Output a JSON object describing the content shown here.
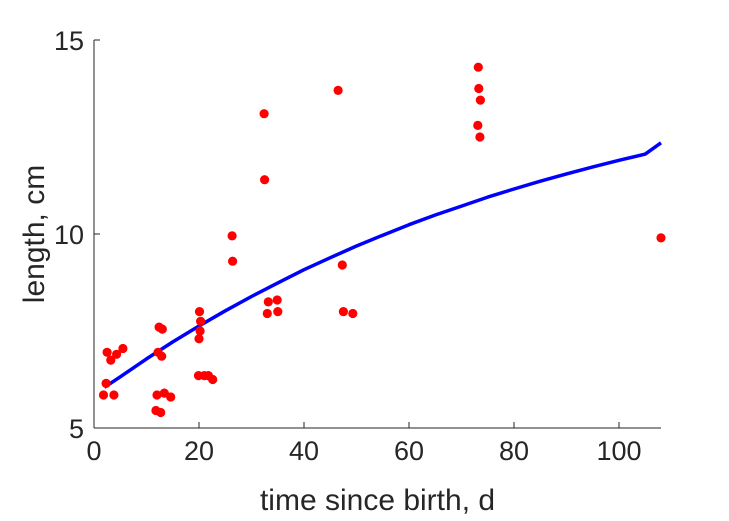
{
  "chart_data": {
    "type": "scatter",
    "title": "",
    "xlabel": "time since birth, d",
    "ylabel": "length, cm",
    "xlim": [
      0,
      108
    ],
    "ylim": [
      5,
      15
    ],
    "xticks": [
      0,
      20,
      40,
      60,
      80,
      100
    ],
    "yticks": [
      5,
      10,
      15
    ],
    "grid": false,
    "legend": "none",
    "series": [
      {
        "kind": "scatter",
        "color": "#ff0000",
        "points": [
          [
            1.8,
            5.85
          ],
          [
            2.3,
            6.15
          ],
          [
            2.5,
            6.95
          ],
          [
            3.2,
            6.75
          ],
          [
            3.8,
            5.85
          ],
          [
            4.3,
            6.9
          ],
          [
            5.5,
            7.05
          ],
          [
            11.8,
            5.45
          ],
          [
            12.0,
            5.85
          ],
          [
            12.2,
            6.95
          ],
          [
            12.4,
            7.6
          ],
          [
            12.7,
            5.4
          ],
          [
            12.9,
            6.85
          ],
          [
            13.0,
            7.55
          ],
          [
            13.4,
            5.9
          ],
          [
            14.6,
            5.8
          ],
          [
            19.9,
            6.35
          ],
          [
            20.0,
            7.3
          ],
          [
            20.1,
            8.0
          ],
          [
            20.2,
            7.5
          ],
          [
            20.3,
            7.75
          ],
          [
            21.0,
            6.35
          ],
          [
            21.8,
            6.35
          ],
          [
            22.6,
            6.25
          ],
          [
            26.3,
            9.95
          ],
          [
            26.4,
            9.3
          ],
          [
            32.4,
            13.1
          ],
          [
            32.5,
            11.4
          ],
          [
            33.0,
            7.95
          ],
          [
            33.2,
            8.25
          ],
          [
            34.9,
            8.3
          ],
          [
            35.0,
            8.0
          ],
          [
            46.5,
            13.7
          ],
          [
            47.3,
            9.2
          ],
          [
            47.5,
            8.0
          ],
          [
            49.3,
            7.95
          ],
          [
            73.1,
            12.8
          ],
          [
            73.2,
            14.3
          ],
          [
            73.3,
            13.75
          ],
          [
            73.5,
            12.5
          ],
          [
            73.6,
            13.45
          ],
          [
            108.0,
            9.9
          ]
        ]
      },
      {
        "kind": "line",
        "color": "#0000ff",
        "x": [
          2,
          5,
          10,
          15,
          20,
          25,
          30,
          35,
          40,
          45,
          50,
          55,
          60,
          65,
          70,
          75,
          80,
          85,
          90,
          95,
          100,
          105,
          108
        ],
        "y": [
          6.05,
          6.32,
          6.78,
          7.22,
          7.63,
          8.02,
          8.39,
          8.74,
          9.08,
          9.39,
          9.69,
          9.97,
          10.24,
          10.49,
          10.72,
          10.95,
          11.16,
          11.36,
          11.55,
          11.73,
          11.9,
          12.06,
          12.35
        ]
      }
    ]
  }
}
